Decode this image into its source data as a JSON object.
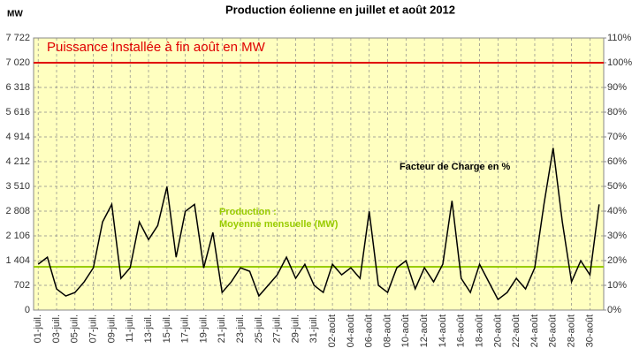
{
  "chart_data": {
    "type": "line",
    "title": "Production éolienne en juillet et août 2012",
    "y_label": "MW",
    "categories": [
      "01-juil.",
      null,
      "03-juil.",
      null,
      "05-juil.",
      null,
      "07-juil.",
      null,
      "09-juil.",
      null,
      "11-juil.",
      null,
      "13-juil.",
      null,
      "15-juil.",
      null,
      "17-juil.",
      null,
      "19-juil.",
      null,
      "21-juil.",
      null,
      "23-juil.",
      null,
      "25-juil.",
      null,
      "27-juil.",
      null,
      "29-juil.",
      null,
      "31-juil.",
      null,
      "02-août",
      null,
      "04-août",
      null,
      "06-août",
      null,
      "08-août",
      null,
      "10-août",
      null,
      "12-août",
      null,
      "14-août",
      null,
      "16-août",
      null,
      "18-août",
      null,
      "20-août",
      null,
      "22-août",
      null,
      "24-août",
      null,
      "26-août",
      null,
      "28-août",
      null,
      "30-août",
      null
    ],
    "series": [
      {
        "name": "Facteur de Charge en %",
        "color": "#000000",
        "values": [
          1300,
          1500,
          600,
          400,
          500,
          800,
          1200,
          2500,
          3000,
          900,
          1200,
          2500,
          2000,
          2400,
          3500,
          1500,
          2800,
          3000,
          1200,
          2200,
          500,
          800,
          1200,
          1100,
          400,
          700,
          1000,
          1500,
          900,
          1300,
          700,
          500,
          1300,
          1000,
          1200,
          900,
          2800,
          700,
          500,
          1200,
          1400,
          600,
          1200,
          800,
          1300,
          3100,
          900,
          500,
          1300,
          800,
          300,
          500,
          900,
          600,
          1200,
          3000,
          4600,
          2500,
          800,
          1400,
          1000,
          3000
        ]
      }
    ],
    "reference_lines": [
      {
        "label": "Puissance Installée à fin août en MW",
        "value": 7020,
        "color": "#e00000"
      },
      {
        "label": [
          "Production :",
          "Moyenne mensuelle (MW)"
        ],
        "value": 1230,
        "color": "#99cc00"
      }
    ],
    "ylim": [
      0,
      7722
    ],
    "yticks": [
      0,
      702,
      {
        "value": 1404,
        "label": "1 404"
      },
      {
        "value": 2106,
        "label": "2 106"
      },
      {
        "value": 2808,
        "label": "2 808"
      },
      {
        "value": 3510,
        "label": "3 510"
      },
      {
        "value": 4212,
        "label": "4 212"
      },
      {
        "value": 4914,
        "label": "4 914"
      },
      {
        "value": 5616,
        "label": "5 616"
      },
      {
        "value": 6318,
        "label": "6 318"
      },
      {
        "value": 7020,
        "label": "7 020"
      },
      {
        "value": 7722,
        "label": "7 722"
      }
    ],
    "y2lim": [
      0,
      110
    ],
    "y2ticks": [
      {
        "value": 0,
        "label": "0%"
      },
      {
        "value": 10,
        "label": "10%"
      },
      {
        "value": 20,
        "label": "20%"
      },
      {
        "value": 30,
        "label": "30%"
      },
      {
        "value": 40,
        "label": "40%"
      },
      {
        "value": 50,
        "label": "50%"
      },
      {
        "value": 60,
        "label": "60%"
      },
      {
        "value": 70,
        "label": "70%"
      },
      {
        "value": 80,
        "label": "80%"
      },
      {
        "value": 90,
        "label": "90%"
      },
      {
        "value": 100,
        "label": "100%"
      },
      {
        "value": 110,
        "label": "110%"
      }
    ],
    "grid": true,
    "background": "#ffffc0"
  }
}
